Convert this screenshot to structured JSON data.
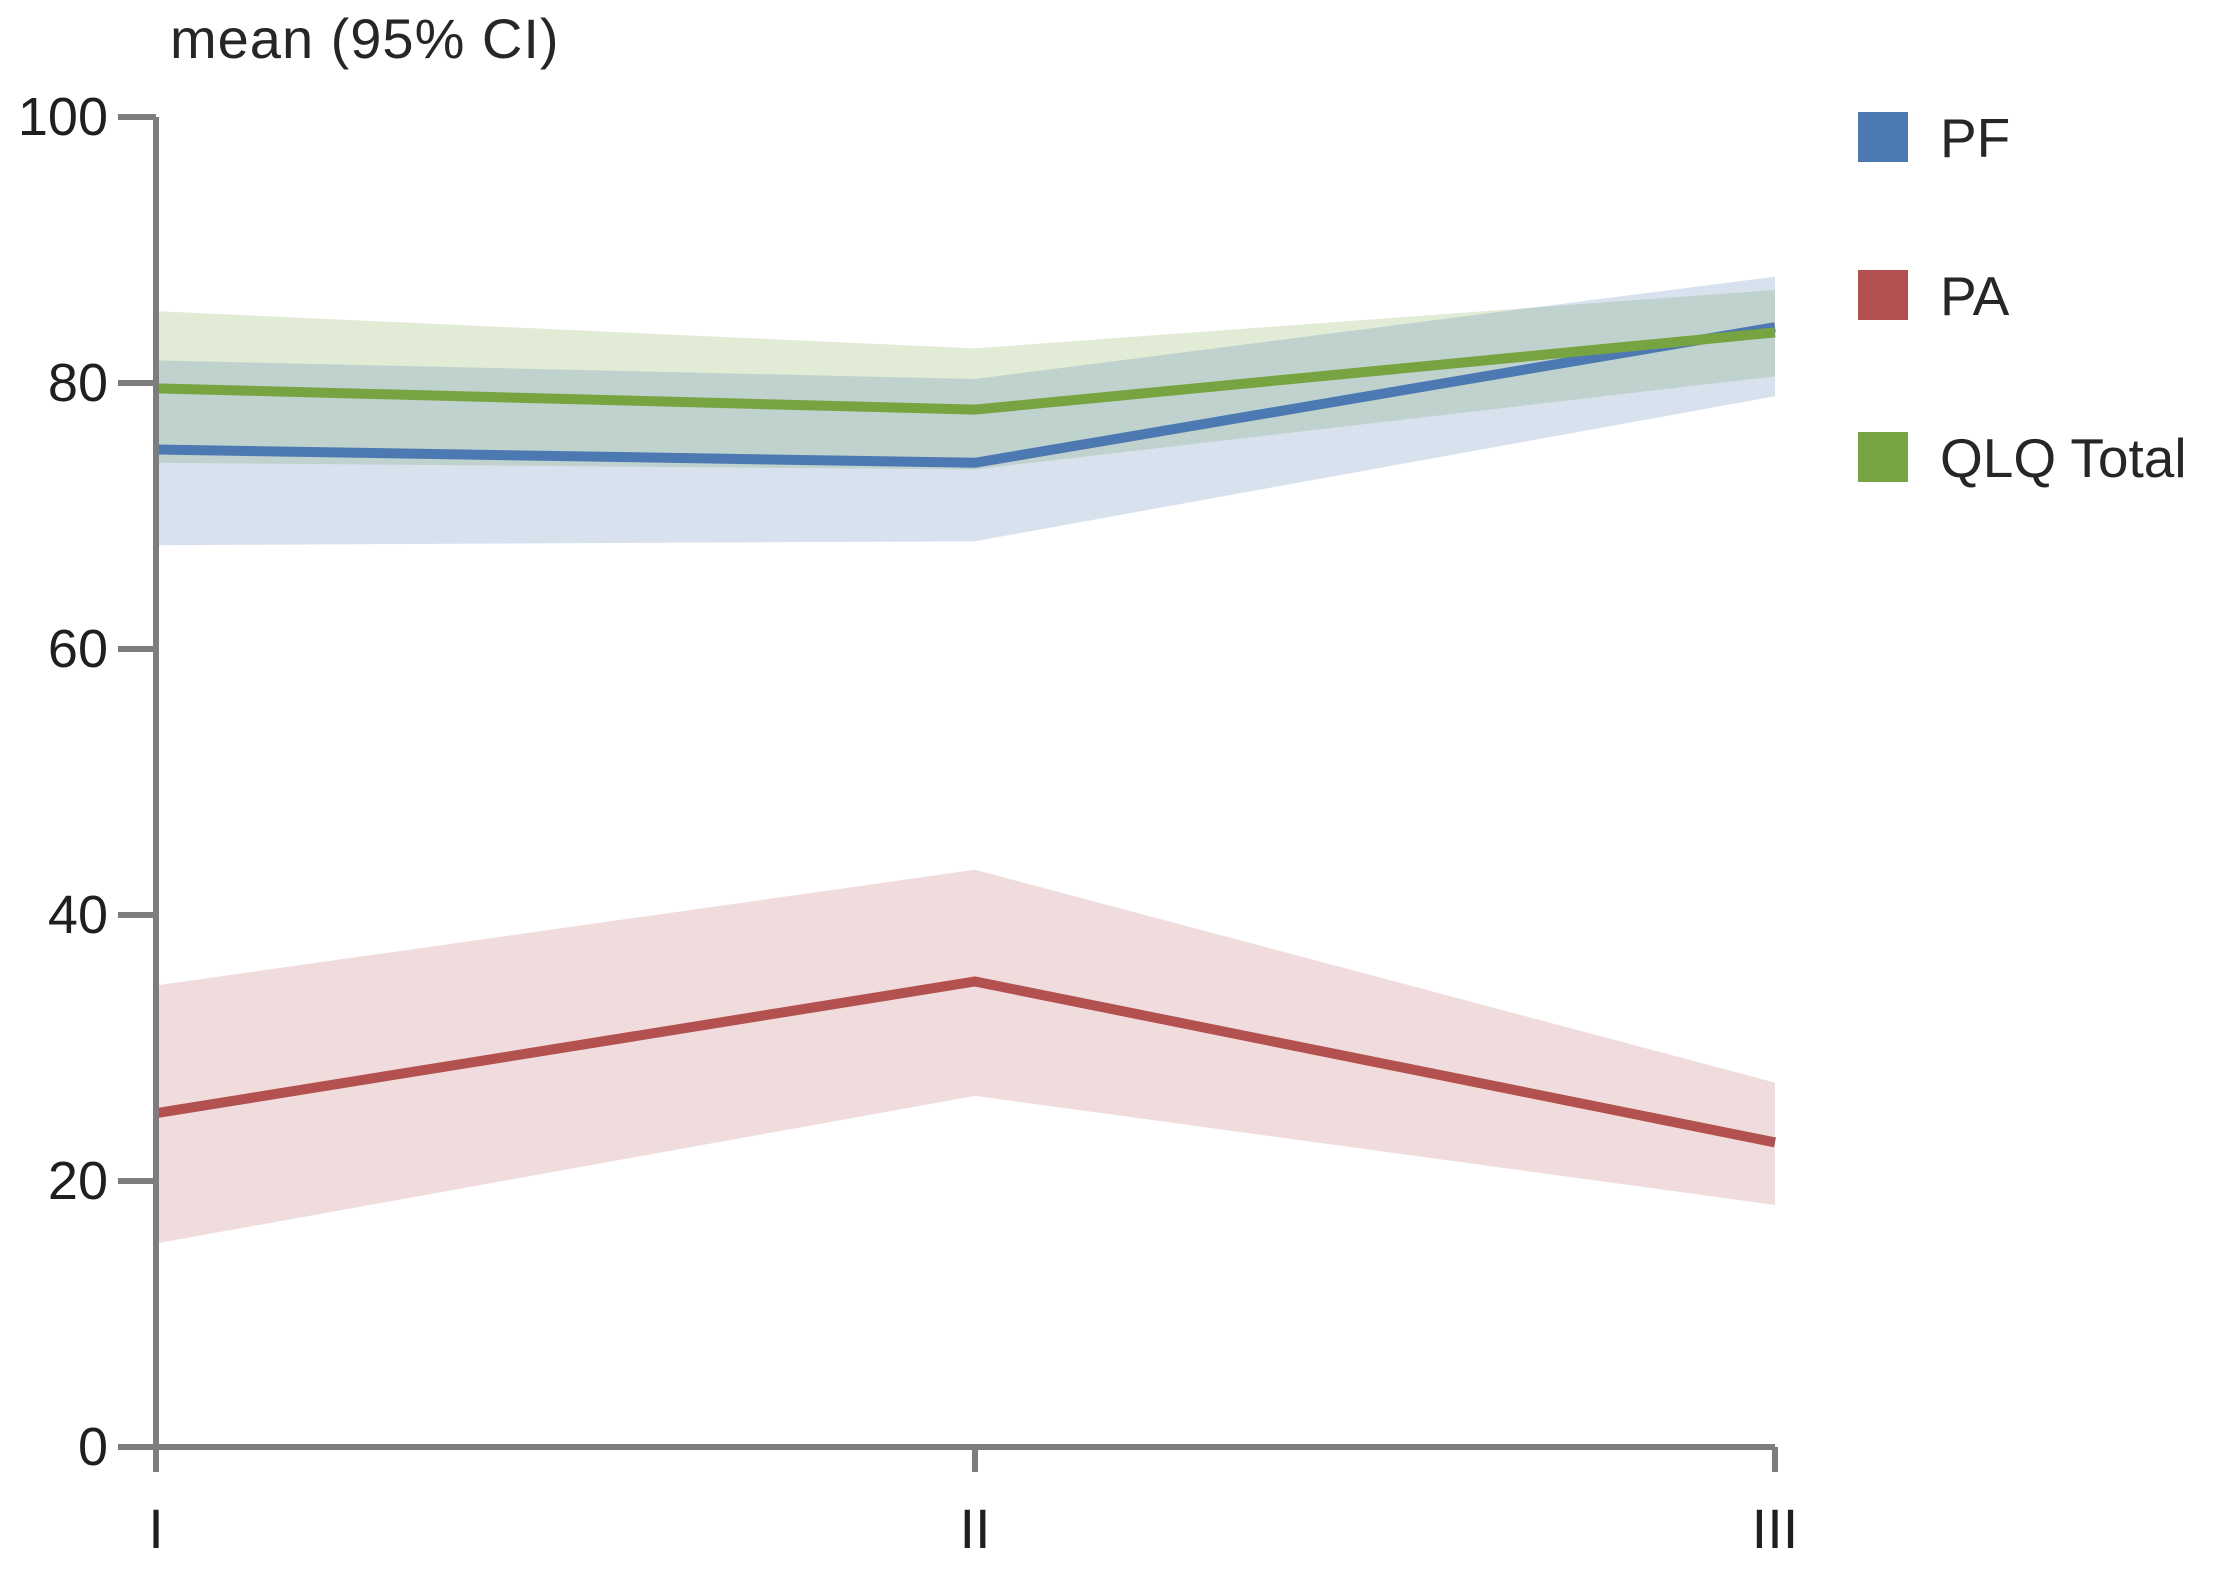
{
  "title": "mean (95% CI)",
  "axes": {
    "x_labels": [
      "I",
      "II",
      "III"
    ],
    "y_tick_labels": [
      "0",
      "20",
      "40",
      "60",
      "80",
      "100"
    ]
  },
  "legend": {
    "items": [
      "PF",
      "PA",
      "QLQ Total"
    ]
  },
  "colors": {
    "axis": "#7d7d7d",
    "tick_text": "#1f1f1f",
    "title_text": "#262626",
    "pf_line": "#4d79b2",
    "pa_line": "#b35150",
    "qlq_line": "#78a341",
    "pf_band": "rgba(77,121,178,0.22)",
    "pa_band": "rgba(179,81,80,0.20)",
    "qlq_band": "rgba(120,163,65,0.22)"
  },
  "chart_data": {
    "type": "line",
    "title": "mean (95% CI)",
    "subtitle": "",
    "categories": [
      "I",
      "II",
      "III"
    ],
    "series": [
      {
        "name": "PF",
        "color": "#4d79b2",
        "band_color": "rgba(77,121,178,0.22)",
        "means": [
          75.0,
          74.0,
          84.2
        ],
        "ci_low": [
          67.8,
          68.1,
          79.0
        ],
        "ci_high": [
          81.7,
          80.3,
          88.0
        ]
      },
      {
        "name": "PA",
        "color": "#b35150",
        "band_color": "rgba(179,81,80,0.20)",
        "means": [
          25.1,
          35.0,
          22.9
        ],
        "ci_low": [
          15.3,
          26.4,
          18.2
        ],
        "ci_high": [
          34.7,
          43.4,
          27.4
        ]
      },
      {
        "name": "QLQ Total",
        "color": "#78a341",
        "band_color": "rgba(120,163,65,0.22)",
        "means": [
          79.6,
          78.0,
          83.8
        ],
        "ci_low": [
          74.0,
          73.5,
          80.5
        ],
        "ci_high": [
          85.4,
          82.6,
          87.0
        ]
      }
    ],
    "yticks": [
      0,
      20,
      40,
      60,
      80,
      100
    ],
    "ylim": [
      0,
      100
    ],
    "xlabel": "",
    "ylabel": "",
    "grid": false,
    "legend_position": "right",
    "band_meaning": "95% confidence interval"
  }
}
